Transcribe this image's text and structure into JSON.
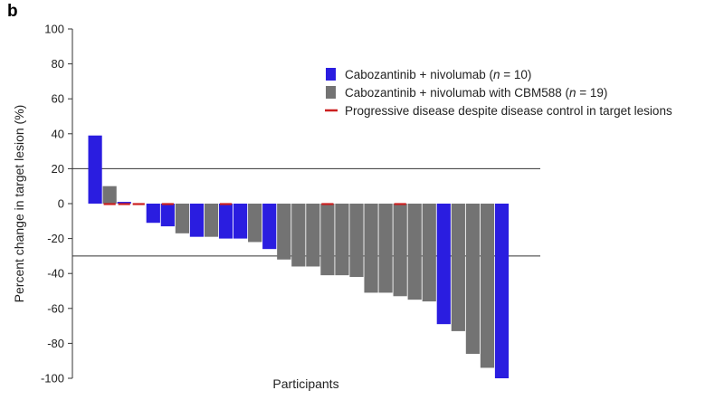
{
  "panel_label": "b",
  "chart_data": {
    "type": "bar",
    "title": "",
    "xlabel": "Participants",
    "ylabel": "Percent change in target lesion (%)",
    "ylim": [
      -100,
      100
    ],
    "yticks": [
      100,
      80,
      60,
      40,
      20,
      0,
      -20,
      -40,
      -60,
      -80,
      -100
    ],
    "reference_lines": [
      20,
      -30
    ],
    "legend": [
      {
        "text_pre": "Cabozantinib + nivolumab (",
        "n_italic": "n",
        "text_post": " = 10)",
        "color": "#2a1de0",
        "marker": "box"
      },
      {
        "text_pre": "Cabozantinib + nivolumab with CBM588 (",
        "n_italic": "n",
        "text_post": " = 19)",
        "color": "#737373",
        "marker": "box"
      },
      {
        "text_pre": "Progressive disease despite disease control in target lesions",
        "n_italic": "",
        "text_post": "",
        "color": "#cc1f1f",
        "marker": "line"
      }
    ],
    "series_colors": {
      "nivo": "#2a1de0",
      "cbm": "#737373",
      "progressive": "#cc1f1f"
    },
    "bars": [
      {
        "value": 39,
        "group": "nivo",
        "progressive": false
      },
      {
        "value": 10,
        "group": "cbm",
        "progressive": true
      },
      {
        "value": 1,
        "group": "nivo",
        "progressive": true
      },
      {
        "value": 0,
        "group": "cbm",
        "progressive": true
      },
      {
        "value": -11,
        "group": "nivo",
        "progressive": false
      },
      {
        "value": -13,
        "group": "nivo",
        "progressive": true
      },
      {
        "value": -17,
        "group": "cbm",
        "progressive": false
      },
      {
        "value": -19,
        "group": "nivo",
        "progressive": false
      },
      {
        "value": -19,
        "group": "cbm",
        "progressive": false
      },
      {
        "value": -20,
        "group": "nivo",
        "progressive": true
      },
      {
        "value": -20,
        "group": "nivo",
        "progressive": false
      },
      {
        "value": -22,
        "group": "cbm",
        "progressive": false
      },
      {
        "value": -26,
        "group": "nivo",
        "progressive": false
      },
      {
        "value": -32,
        "group": "cbm",
        "progressive": false
      },
      {
        "value": -36,
        "group": "cbm",
        "progressive": false
      },
      {
        "value": -36,
        "group": "cbm",
        "progressive": false
      },
      {
        "value": -41,
        "group": "cbm",
        "progressive": true
      },
      {
        "value": -41,
        "group": "cbm",
        "progressive": false
      },
      {
        "value": -42,
        "group": "cbm",
        "progressive": false
      },
      {
        "value": -51,
        "group": "cbm",
        "progressive": false
      },
      {
        "value": -51,
        "group": "cbm",
        "progressive": false
      },
      {
        "value": -53,
        "group": "cbm",
        "progressive": true
      },
      {
        "value": -55,
        "group": "cbm",
        "progressive": false
      },
      {
        "value": -56,
        "group": "cbm",
        "progressive": false
      },
      {
        "value": -69,
        "group": "nivo",
        "progressive": false
      },
      {
        "value": -73,
        "group": "cbm",
        "progressive": false
      },
      {
        "value": -86,
        "group": "cbm",
        "progressive": false
      },
      {
        "value": -94,
        "group": "cbm",
        "progressive": false
      },
      {
        "value": -100,
        "group": "nivo",
        "progressive": false
      }
    ]
  }
}
